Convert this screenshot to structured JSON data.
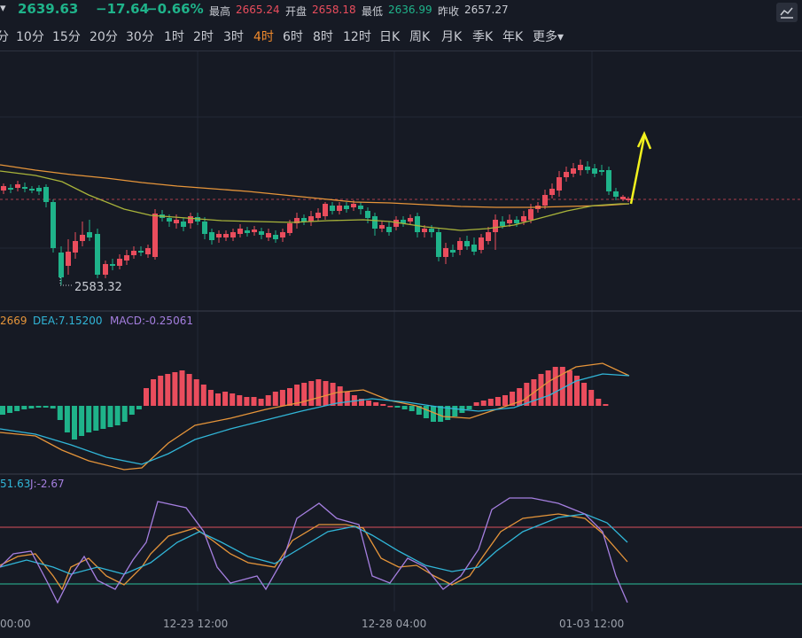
{
  "quote": {
    "arrow": "▾",
    "price": "2639.63",
    "change": "−17.64",
    "change_pct": "−0.66%",
    "high_label": "最高",
    "high": "2665.24",
    "open_label": "开盘",
    "open": "2658.18",
    "low_label": "最低",
    "low": "2636.99",
    "prev_close_label": "昨收",
    "prev_close": "2657.27"
  },
  "timeframes": [
    "分",
    "10分",
    "15分",
    "20分",
    "30分",
    "1时",
    "2时",
    "3时",
    "4时",
    "6时",
    "8时",
    "12时",
    "日K",
    "周K",
    "月K",
    "季K",
    "年K",
    "更多"
  ],
  "active_timeframe": "4时",
  "more_arrow": "▾",
  "main_chart": {
    "low_marker": "2583.32"
  },
  "macd": {
    "dif_label": "2669",
    "dea_label": "DEA:7.15200",
    "macd_label": "MACD:-0.25061"
  },
  "kdj": {
    "d_label": "51.63",
    "j_label": "J:-2.67"
  },
  "x_axis": {
    "labels": [
      "00:00",
      "12-23 12:00",
      "12-28 04:00",
      "01-03 12:00"
    ]
  },
  "colors": {
    "up": "#ea4d5d",
    "down": "#1fb38a",
    "ma_orange": "#e6953a",
    "ma_olive": "#a9b43a",
    "dea_blue": "#31b6d8",
    "j_purple": "#a57fe0",
    "arrow_yellow": "#f2f21e"
  },
  "icons": {
    "chart_style": "chart-style-icon"
  }
}
